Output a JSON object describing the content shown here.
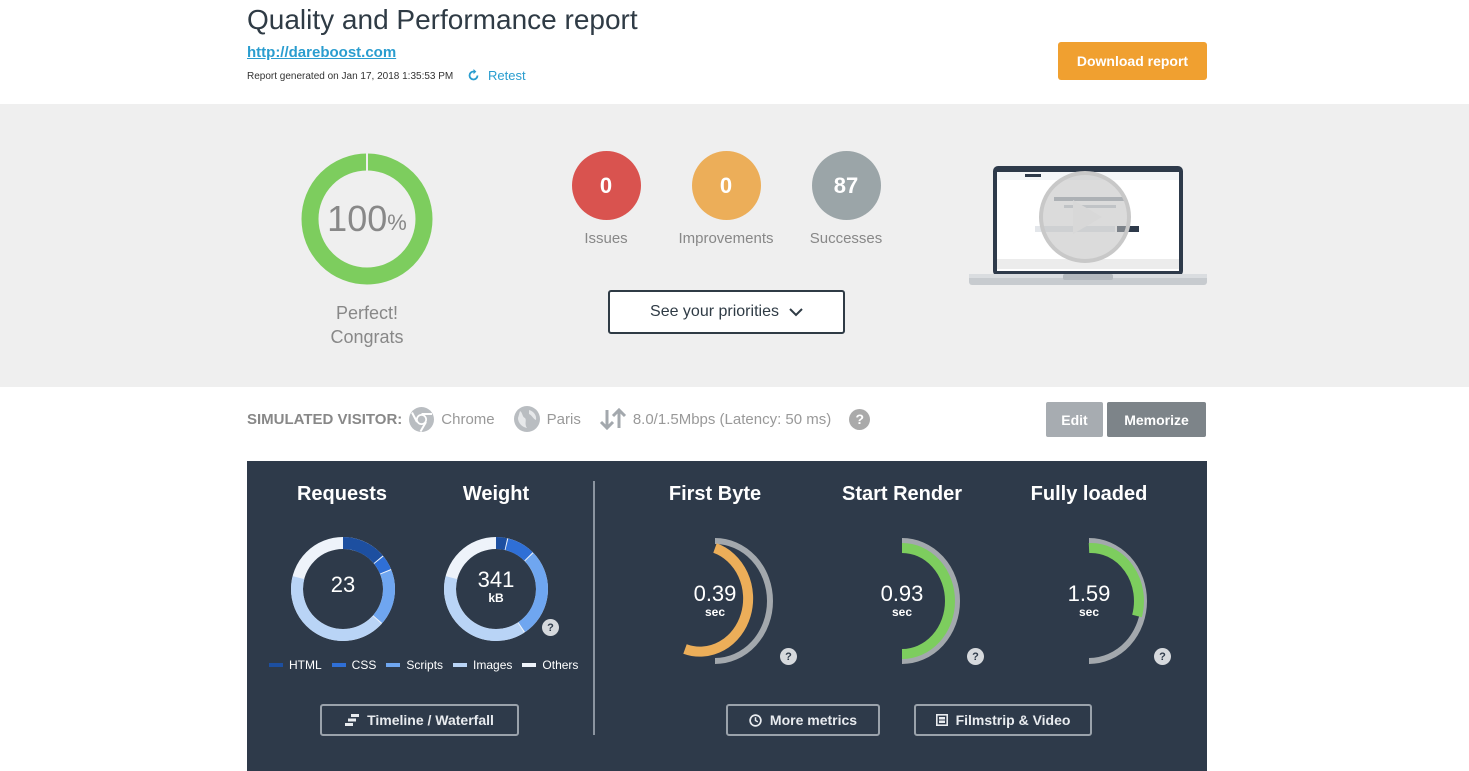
{
  "header": {
    "title": "Quality and Performance report",
    "url": "http://dareboost.com",
    "generated": "Report generated on Jan 17, 2018 1:35:53 PM",
    "retest_label": "Retest",
    "download_label": "Download report"
  },
  "summary": {
    "score": "100",
    "score_unit": "%",
    "score_value": 100,
    "verdict_line1": "Perfect!",
    "verdict_line2": "Congrats",
    "stats": [
      {
        "value": "0",
        "label": "Issues",
        "color": "#d9534f"
      },
      {
        "value": "0",
        "label": "Improvements",
        "color": "#ecae59"
      },
      {
        "value": "87",
        "label": "Successes",
        "color": "#9ba5a8"
      }
    ],
    "priorities_label": "See your priorities",
    "colors": {
      "score": "#7dcd5e",
      "background": "#efefef"
    }
  },
  "visitor": {
    "label": "SIMULATED VISITOR:",
    "browser": "Chrome",
    "location": "Paris",
    "connection": "8.0/1.5Mbps (Latency: 50 ms)",
    "help": "?",
    "edit_label": "Edit",
    "memorize_label": "Memorize"
  },
  "metrics": {
    "requests": {
      "title": "Requests",
      "value": "23"
    },
    "weight": {
      "title": "Weight",
      "value": "341",
      "unit": "kB"
    },
    "legend": [
      {
        "label": "HTML",
        "color": "#1d4fa0"
      },
      {
        "label": "CSS",
        "color": "#2f6fd6"
      },
      {
        "label": "Scripts",
        "color": "#6fa6f0"
      },
      {
        "label": "Images",
        "color": "#b9d4f6"
      },
      {
        "label": "Others",
        "color": "#eef3fa"
      }
    ],
    "first_byte": {
      "title": "First Byte",
      "value": "0.39",
      "unit": "sec",
      "color": "#ecae59"
    },
    "start_render": {
      "title": "Start Render",
      "value": "0.93",
      "unit": "sec",
      "color": "#7dcd5e"
    },
    "fully_loaded": {
      "title": "Fully loaded",
      "value": "1.59",
      "unit": "sec",
      "color": "#7dcd5e"
    },
    "help": "?",
    "timeline_label": "Timeline / Waterfall",
    "more_metrics_label": "More metrics",
    "filmstrip_label": "Filmstrip & Video"
  }
}
